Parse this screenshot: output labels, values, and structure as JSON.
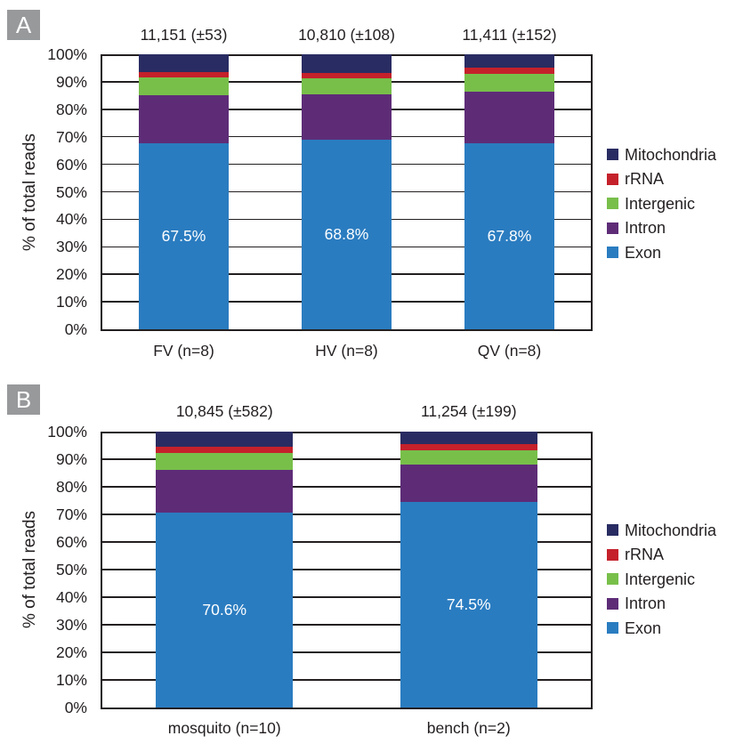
{
  "figure": {
    "panel_labels": [
      "A",
      "B"
    ],
    "colors": {
      "axis_and_text": "#231f20",
      "panel_label_bg": "#97999b",
      "panel_label_fg": "#ffffff",
      "bar_value_label": "#ffffff"
    }
  },
  "chart_data": [
    {
      "type": "bar",
      "stacked": true,
      "panel": "A",
      "title": "",
      "xlabel": "",
      "ylabel": "% of total reads",
      "ylim": [
        0,
        100
      ],
      "yticks": [
        "0%",
        "10%",
        "20%",
        "30%",
        "40%",
        "50%",
        "60%",
        "70%",
        "80%",
        "90%",
        "100%"
      ],
      "grid": true,
      "legend_position": "right",
      "legend_order": [
        "Mitochondria",
        "rRNA",
        "Intergenic",
        "Intron",
        "Exon"
      ],
      "categories": [
        "FV (n=8)",
        "HV (n=8)",
        "QV (n=8)"
      ],
      "bar_total_annotations": [
        "11,151 (±53)",
        "10,810 (±108)",
        "11,411 (±152)"
      ],
      "exon_percent_labels": [
        "67.5%",
        "68.8%",
        "67.8%"
      ],
      "series": [
        {
          "name": "Exon",
          "color": "#2a7cc0",
          "values": [
            67.5,
            68.8,
            67.8
          ]
        },
        {
          "name": "Intron",
          "color": "#5e2c77",
          "values": [
            17.6,
            16.6,
            18.6
          ]
        },
        {
          "name": "Intergenic",
          "color": "#78bf4a",
          "values": [
            6.5,
            5.9,
            6.4
          ]
        },
        {
          "name": "rRNA",
          "color": "#c4212b",
          "values": [
            1.9,
            2.0,
            2.3
          ]
        },
        {
          "name": "Mitochondria",
          "color": "#292c62",
          "values": [
            6.5,
            6.7,
            4.9
          ]
        }
      ]
    },
    {
      "type": "bar",
      "stacked": true,
      "panel": "B",
      "title": "",
      "xlabel": "",
      "ylabel": "% of total reads",
      "ylim": [
        0,
        100
      ],
      "yticks": [
        "0%",
        "10%",
        "20%",
        "30%",
        "40%",
        "50%",
        "60%",
        "70%",
        "80%",
        "90%",
        "100%"
      ],
      "grid": true,
      "legend_position": "right",
      "legend_order": [
        "Mitochondria",
        "rRNA",
        "Intergenic",
        "Intron",
        "Exon"
      ],
      "categories": [
        "mosquito (n=10)",
        "bench (n=2)"
      ],
      "bar_total_annotations": [
        "10,845 (±582)",
        "11,254 (±199)"
      ],
      "exon_percent_labels": [
        "70.6%",
        "74.5%"
      ],
      "series": [
        {
          "name": "Exon",
          "color": "#2a7cc0",
          "values": [
            70.6,
            74.5
          ]
        },
        {
          "name": "Intron",
          "color": "#5e2c77",
          "values": [
            15.5,
            13.6
          ]
        },
        {
          "name": "Intergenic",
          "color": "#78bf4a",
          "values": [
            6.2,
            5.1
          ]
        },
        {
          "name": "rRNA",
          "color": "#c4212b",
          "values": [
            2.2,
            2.3
          ]
        },
        {
          "name": "Mitochondria",
          "color": "#292c62",
          "values": [
            5.5,
            4.5
          ]
        }
      ]
    }
  ]
}
